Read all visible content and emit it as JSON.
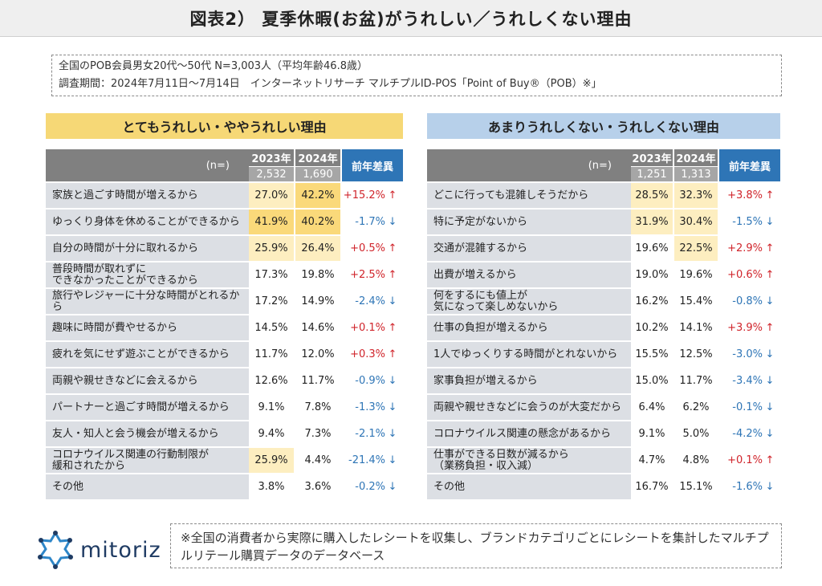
{
  "title": "図表2） 夏季休暇(お盆)がうれしい／うれしくない理由",
  "info": {
    "line1": "全国のPOB会員男女20代～50代 N=3,003人（平均年齢46.8歳）",
    "line2": "調査期間：2024年7月11日～7月14日　インターネットリサーチ マルチプルID-POS「Point of Buy®（POB）※」"
  },
  "left": {
    "header": "とてもうれしい・ややうれしい理由",
    "n_label": "(n=)",
    "year1": "2023年",
    "year2": "2024年",
    "n1": "2,532",
    "n2": "1,690",
    "diff_label": "前年差異",
    "rows": [
      {
        "label": "家族と過ごす時間が増えるから",
        "v1": "27.0%",
        "v2": "42.2%",
        "diff": "+15.2%",
        "arrow": "↑"
      },
      {
        "label": "ゆっくり身体を休めることができるから",
        "v1": "41.9%",
        "v2": "40.2%",
        "diff": "-1.7%",
        "arrow": "↓"
      },
      {
        "label": "自分の時間が十分に取れるから",
        "v1": "25.9%",
        "v2": "26.4%",
        "diff": "+0.5%",
        "arrow": "↑"
      },
      {
        "label": "普段時間が取れずに\nできなかったことができるから",
        "v1": "17.3%",
        "v2": "19.8%",
        "diff": "+2.5%",
        "arrow": "↑"
      },
      {
        "label": "旅行やレジャーに十分な時間がとれるから",
        "v1": "17.2%",
        "v2": "14.9%",
        "diff": "-2.4%",
        "arrow": "↓"
      },
      {
        "label": "趣味に時間が費やせるから",
        "v1": "14.5%",
        "v2": "14.6%",
        "diff": "+0.1%",
        "arrow": "↑"
      },
      {
        "label": "疲れを気にせず遊ぶことができるから",
        "v1": "11.7%",
        "v2": "12.0%",
        "diff": "+0.3%",
        "arrow": "↑"
      },
      {
        "label": "両親や親せきなどに会えるから",
        "v1": "12.6%",
        "v2": "11.7%",
        "diff": "-0.9%",
        "arrow": "↓"
      },
      {
        "label": "パートナーと過ごす時間が増えるから",
        "v1": "9.1%",
        "v2": "7.8%",
        "diff": "-1.3%",
        "arrow": "↓"
      },
      {
        "label": "友人・知人と会う機会が増えるから",
        "v1": "9.4%",
        "v2": "7.3%",
        "diff": "-2.1%",
        "arrow": "↓"
      },
      {
        "label": "コロナウイルス関連の行動制限が\n緩和されたから",
        "v1": "25.9%",
        "v2": "4.4%",
        "diff": "-21.4%",
        "arrow": "↓"
      },
      {
        "label": "その他",
        "v1": "3.8%",
        "v2": "3.6%",
        "diff": "-0.2%",
        "arrow": "↓"
      }
    ]
  },
  "right": {
    "header": "あまりうれしくない・うれしくない理由",
    "n_label": "(n=)",
    "year1": "2023年",
    "year2": "2024年",
    "n1": "1,251",
    "n2": "1,313",
    "diff_label": "前年差異",
    "rows": [
      {
        "label": "どこに行っても混雑しそうだから",
        "v1": "28.5%",
        "v2": "32.3%",
        "diff": "+3.8%",
        "arrow": "↑"
      },
      {
        "label": "特に予定がないから",
        "v1": "31.9%",
        "v2": "30.4%",
        "diff": "-1.5%",
        "arrow": "↓"
      },
      {
        "label": "交通が混雑するから",
        "v1": "19.6%",
        "v2": "22.5%",
        "diff": "+2.9%",
        "arrow": "↑"
      },
      {
        "label": "出費が増えるから",
        "v1": "19.0%",
        "v2": "19.6%",
        "diff": "+0.6%",
        "arrow": "↑"
      },
      {
        "label": "何をするにも値上が\n気になって楽しめないから",
        "v1": "16.2%",
        "v2": "15.4%",
        "diff": "-0.8%",
        "arrow": "↓"
      },
      {
        "label": "仕事の負担が増えるから",
        "v1": "10.2%",
        "v2": "14.1%",
        "diff": "+3.9%",
        "arrow": "↑"
      },
      {
        "label": "1人でゆっくりする時間がとれないから",
        "v1": "15.5%",
        "v2": "12.5%",
        "diff": "-3.0%",
        "arrow": "↓"
      },
      {
        "label": "家事負担が増えるから",
        "v1": "15.0%",
        "v2": "11.7%",
        "diff": "-3.4%",
        "arrow": "↓"
      },
      {
        "label": "両親や親せきなどに会うのが大変だから",
        "v1": "6.4%",
        "v2": "6.2%",
        "diff": "-0.1%",
        "arrow": "↓"
      },
      {
        "label": "コロナウイルス関連の懸念があるから",
        "v1": "9.1%",
        "v2": "5.0%",
        "diff": "-4.2%",
        "arrow": "↓"
      },
      {
        "label": "仕事ができる日数が減るから\n（業務負担・収入減）",
        "v1": "4.7%",
        "v2": "4.8%",
        "diff": "+0.1%",
        "arrow": "↑"
      },
      {
        "label": "その他",
        "v1": "16.7%",
        "v2": "15.1%",
        "diff": "-1.6%",
        "arrow": "↓"
      }
    ]
  },
  "footer": {
    "logo": "mitoriz",
    "note": "※全国の消費者から実際に購入したレシートを収集し、ブランドカテゴリごとにレシートを集計したマルチプルリテール購買データのデータベース"
  },
  "colors": {
    "highlight_strong": "#fad97a",
    "highlight_light": "#fdeec0",
    "positive": "#d0242b",
    "negative": "#2e75b6",
    "left_header": "#f6d876",
    "right_header": "#b7d0ea"
  }
}
